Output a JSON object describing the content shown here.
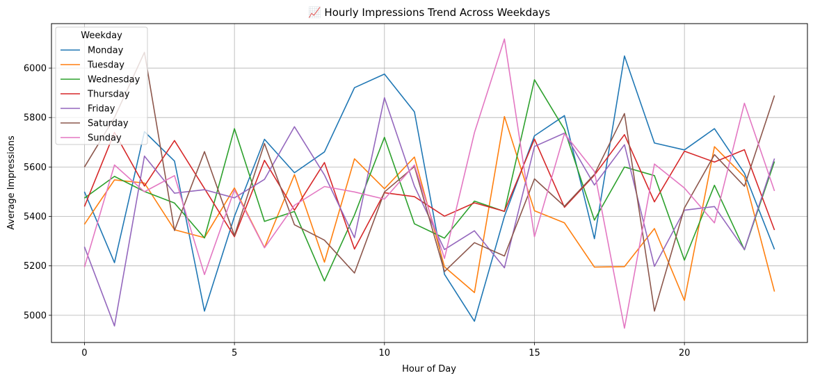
{
  "chart_data": {
    "type": "line",
    "title": "📈 Hourly Impressions Trend Across Weekdays",
    "xlabel": "Hour of Day",
    "ylabel": "Average Impressions",
    "xlim": [
      -1.1,
      24.1
    ],
    "ylim": [
      4890,
      6180
    ],
    "xticks": [
      0,
      5,
      10,
      15,
      20
    ],
    "yticks": [
      5000,
      5200,
      5400,
      5600,
      5800,
      6000
    ],
    "grid": true,
    "legend": {
      "title": "Weekday",
      "placement": "top-left"
    },
    "x": [
      0,
      1,
      2,
      3,
      4,
      5,
      6,
      7,
      8,
      9,
      10,
      11,
      12,
      13,
      14,
      15,
      16,
      17,
      18,
      19,
      20,
      21,
      22,
      23
    ],
    "series": [
      {
        "name": "Monday",
        "color": "#1f77b4",
        "values": [
          5500,
          5213,
          5743,
          5624,
          5017,
          5400,
          5712,
          5577,
          5661,
          5921,
          5976,
          5823,
          5166,
          4976,
          5400,
          5726,
          5808,
          5310,
          6049,
          5697,
          5669,
          5755,
          5575,
          5267
        ]
      },
      {
        "name": "Tuesday",
        "color": "#ff7f0e",
        "values": [
          5368,
          5548,
          5535,
          5346,
          5314,
          5515,
          5274,
          5569,
          5215,
          5633,
          5512,
          5640,
          5196,
          5092,
          5804,
          5423,
          5374,
          5195,
          5197,
          5351,
          5060,
          5682,
          5560,
          5096
        ]
      },
      {
        "name": "Wednesday",
        "color": "#2ca02c",
        "values": [
          5474,
          5562,
          5501,
          5454,
          5313,
          5755,
          5380,
          5420,
          5139,
          5406,
          5720,
          5370,
          5312,
          5462,
          5420,
          5953,
          5752,
          5385,
          5600,
          5565,
          5223,
          5526,
          5265,
          5622
        ]
      },
      {
        "name": "Thursday",
        "color": "#d62728",
        "values": [
          5440,
          5740,
          5523,
          5707,
          5513,
          5318,
          5627,
          5425,
          5618,
          5268,
          5496,
          5480,
          5401,
          5455,
          5421,
          5713,
          5437,
          5567,
          5731,
          5459,
          5664,
          5620,
          5670,
          5345
        ]
      },
      {
        "name": "Friday",
        "color": "#9467bd",
        "values": [
          5277,
          4957,
          5644,
          5494,
          5508,
          5475,
          5550,
          5763,
          5568,
          5314,
          5880,
          5522,
          5266,
          5342,
          5192,
          5683,
          5737,
          5527,
          5690,
          5198,
          5425,
          5440,
          5266,
          5634
        ]
      },
      {
        "name": "Saturday",
        "color": "#8c564b",
        "values": [
          5600,
          5800,
          6064,
          5343,
          5662,
          5322,
          5695,
          5366,
          5304,
          5171,
          5499,
          5602,
          5177,
          5294,
          5240,
          5552,
          5441,
          5570,
          5816,
          5017,
          5434,
          5650,
          5522,
          5889
        ]
      },
      {
        "name": "Sunday",
        "color": "#e377c2",
        "values": [
          5195,
          5608,
          5500,
          5565,
          5165,
          5508,
          5273,
          5445,
          5521,
          5499,
          5470,
          5608,
          5230,
          5739,
          6118,
          5318,
          5735,
          5582,
          4948,
          5612,
          5515,
          5374,
          5858,
          5503
        ]
      }
    ]
  }
}
